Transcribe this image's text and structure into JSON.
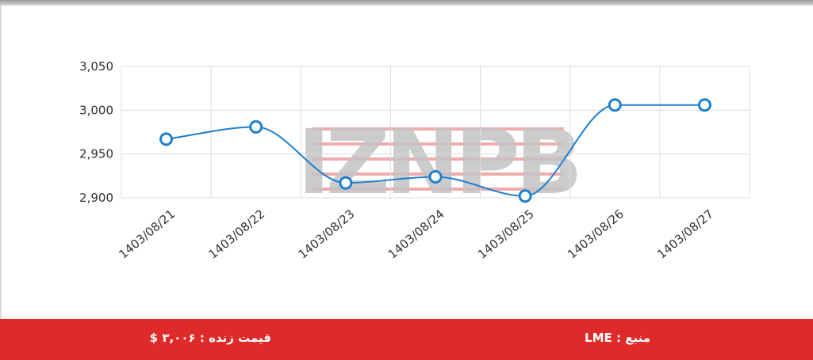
{
  "chart_data": {
    "type": "line",
    "title": "",
    "xlabel": "",
    "ylabel": "",
    "categories": [
      "1403/08/21",
      "1403/08/22",
      "1403/08/23",
      "1403/08/24",
      "1403/08/25",
      "1403/08/26",
      "1403/08/27"
    ],
    "series": [
      {
        "values": [
          2967,
          2981,
          2917,
          2924,
          2902,
          3006,
          3006
        ]
      }
    ],
    "ylim": [
      2900,
      3050
    ],
    "yticks": [
      2900,
      2950,
      3000,
      3050
    ],
    "ytick_labels": [
      "2,900",
      "2,950",
      "3,000",
      "3,050"
    ],
    "grid": true,
    "line_color": "#1e7fcf",
    "watermark": "IZNPB"
  },
  "footer": {
    "price_text": "قیمت زنده : ۳,۰۰۶ $",
    "source_text": "منبع : LME"
  },
  "colors": {
    "footer_bg": "#df2a2a",
    "grid": "#dddddd",
    "watermark_red": "#e46a6a",
    "watermark_gray": "#c4c4c4"
  }
}
